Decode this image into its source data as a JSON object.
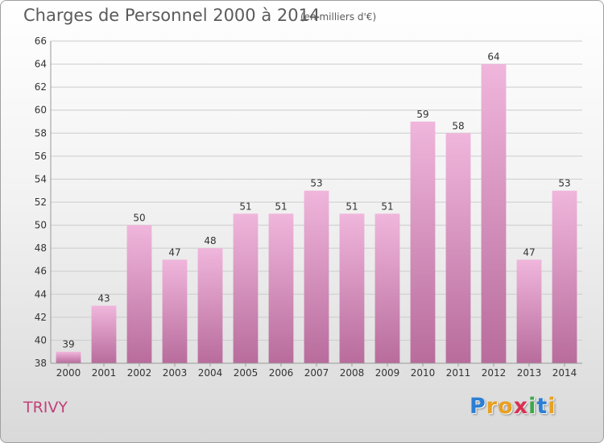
{
  "header": {
    "title": "Charges de Personnel 2000 à 2014",
    "subtitle": "(en milliers d'€)"
  },
  "footer": {
    "commune": "TRIVY",
    "logo_letters": [
      "P",
      "r",
      "o",
      "x",
      "i",
      "t",
      "i"
    ],
    "logo_colors": [
      "#2a7fd4",
      "#e8a020",
      "#e8a020",
      "#d9304f",
      "#3aa84a",
      "#2a7fd4",
      "#e8a020"
    ]
  },
  "colors": {
    "bar_light": "#f0b6dc",
    "bar_dark": "#b86c9c",
    "grid": "#cccccc",
    "axis_text": "#333333"
  },
  "chart_data": {
    "type": "bar",
    "categories": [
      "2000",
      "2001",
      "2002",
      "2003",
      "2004",
      "2005",
      "2006",
      "2007",
      "2008",
      "2009",
      "2010",
      "2011",
      "2012",
      "2013",
      "2014"
    ],
    "values": [
      39,
      43,
      50,
      47,
      48,
      51,
      51,
      53,
      51,
      51,
      59,
      58,
      64,
      47,
      53
    ],
    "data_labels": [
      "39",
      "43",
      "50",
      "47",
      "48",
      "51",
      "51",
      "53",
      "51",
      "51",
      "59",
      "58",
      "64",
      "47",
      "53"
    ],
    "y_ticks": [
      38,
      40,
      42,
      44,
      46,
      48,
      50,
      52,
      54,
      56,
      58,
      60,
      62,
      64,
      66
    ],
    "ylim": [
      38,
      66
    ],
    "grid": true,
    "legend": "none"
  }
}
